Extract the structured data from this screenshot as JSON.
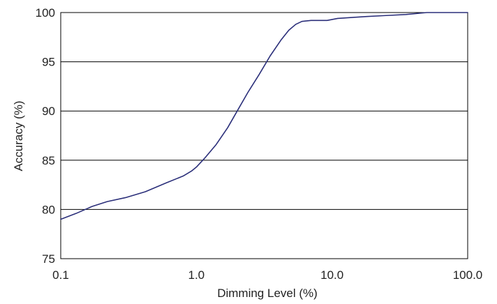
{
  "chart_data": {
    "type": "line",
    "title": "",
    "xlabel": "Dimming Level (%)",
    "ylabel": "Accuracy (%)",
    "x_scale": "log",
    "xlim": [
      0.1,
      100.0
    ],
    "ylim": [
      75,
      100
    ],
    "x_ticks": [
      {
        "value": 0.1,
        "label": "0.1"
      },
      {
        "value": 1.0,
        "label": "1.0"
      },
      {
        "value": 10.0,
        "label": "10.0"
      },
      {
        "value": 100.0,
        "label": "100.0"
      }
    ],
    "y_ticks": [
      75,
      80,
      85,
      90,
      95,
      100
    ],
    "grid": "horizontal",
    "line_color": "#2b2f7a",
    "series": [
      {
        "x": [
          0.1,
          0.13,
          0.17,
          0.22,
          0.3,
          0.42,
          0.6,
          0.8,
          0.92,
          1.0,
          1.15,
          1.4,
          1.7,
          2.0,
          2.4,
          2.9,
          3.5,
          4.2,
          4.8,
          5.4,
          6.0,
          7.0,
          8.0,
          9.2,
          11.0,
          14.0,
          18.0,
          25.0,
          35.0,
          50.0,
          75.0,
          100.0
        ],
        "y": [
          79.0,
          79.6,
          80.3,
          80.8,
          81.2,
          81.8,
          82.7,
          83.4,
          83.9,
          84.3,
          85.2,
          86.6,
          88.3,
          90.0,
          91.9,
          93.7,
          95.6,
          97.2,
          98.2,
          98.8,
          99.1,
          99.2,
          99.2,
          99.2,
          99.4,
          99.5,
          99.6,
          99.7,
          99.8,
          100.0,
          100.0,
          100.0
        ]
      }
    ]
  }
}
